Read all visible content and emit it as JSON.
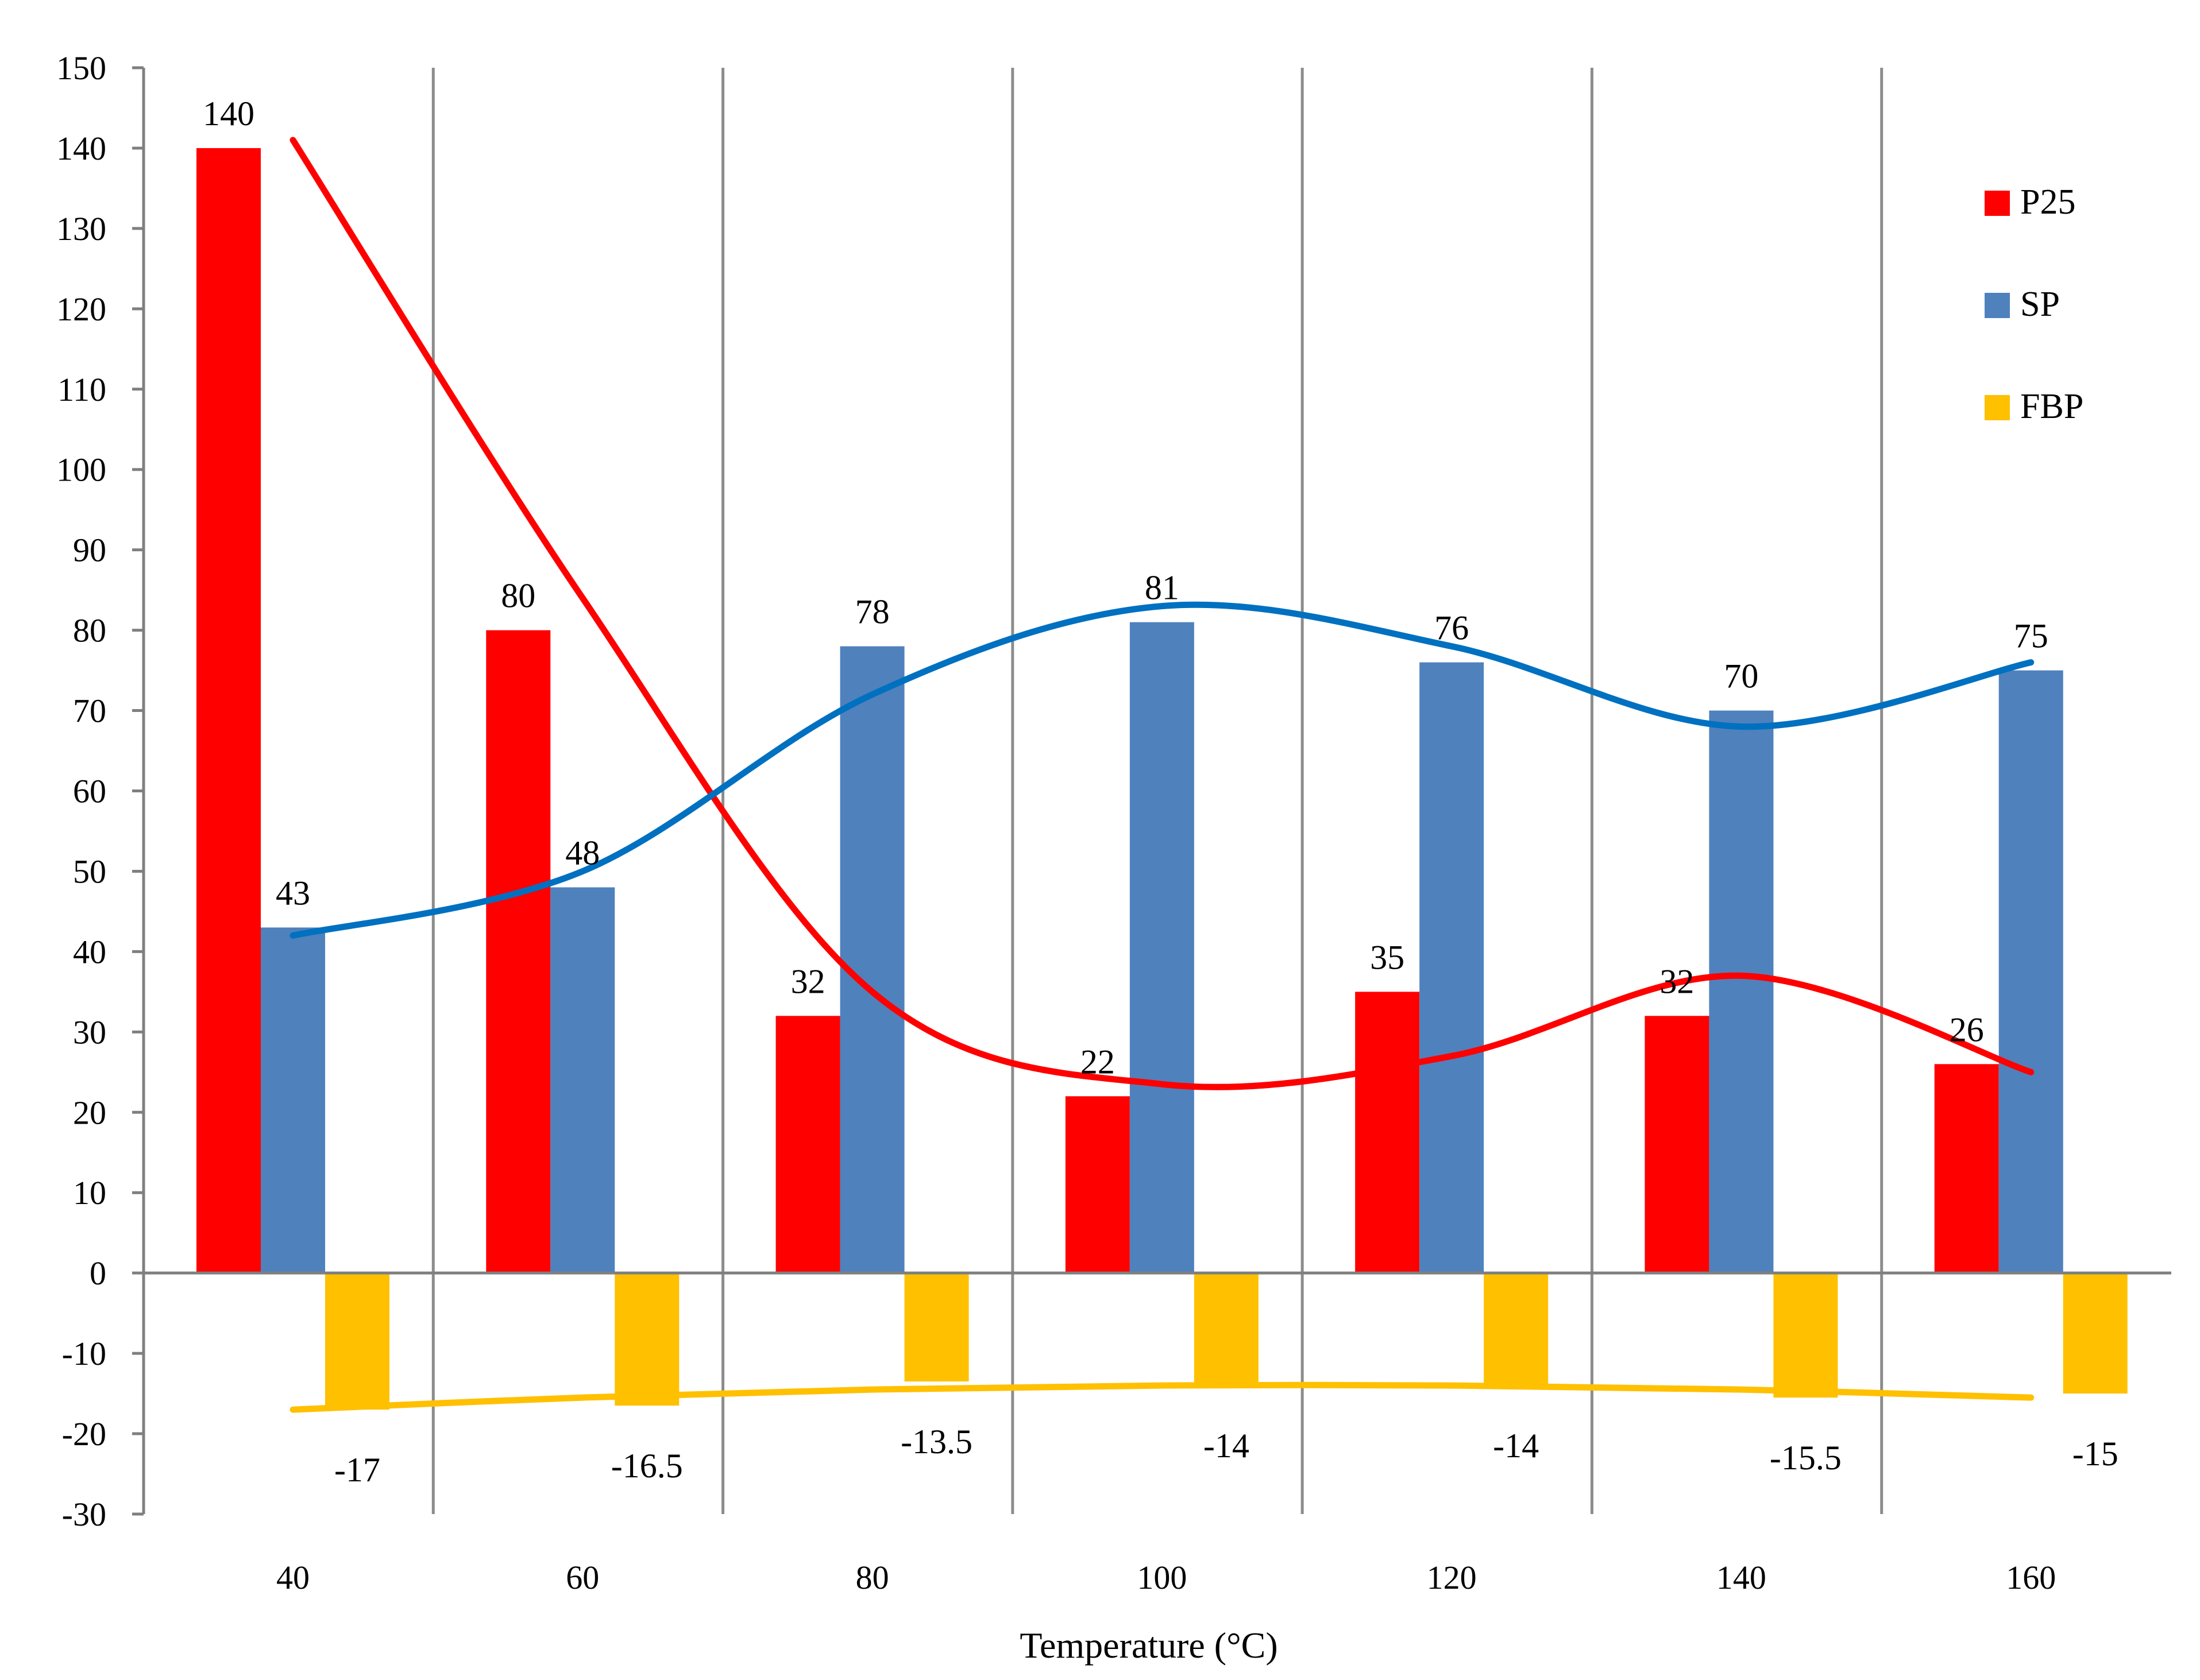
{
  "chart_data": {
    "type": "bar",
    "xlabel": "Temperature (°C)",
    "ylabel": "",
    "ylim": [
      -30,
      150
    ],
    "ytick_step": 10,
    "categories": [
      "40",
      "60",
      "80",
      "100",
      "120",
      "140",
      "160"
    ],
    "series": [
      {
        "name": "P25",
        "color": "#ff0000",
        "values": [
          140,
          80,
          32,
          22,
          35,
          32,
          26
        ],
        "labels": [
          "140",
          "80",
          "32",
          "22",
          "35",
          "32",
          "26"
        ]
      },
      {
        "name": "SP",
        "color": "#4f81bd",
        "values": [
          43,
          48,
          78,
          81,
          76,
          70,
          75
        ],
        "labels": [
          "43",
          "48",
          "78",
          "81",
          "76",
          "70",
          "75"
        ]
      },
      {
        "name": "FBP",
        "color": "#ffc000",
        "values": [
          -17,
          -16.5,
          -13.5,
          -14,
          -14,
          -15.5,
          -15
        ],
        "labels": [
          "-17",
          "-16.5",
          "-13.5",
          "-14",
          "-14",
          "-15.5",
          "-15"
        ]
      }
    ],
    "trendlines": [
      {
        "series": "P25",
        "color": "#ff0000",
        "points": [
          141,
          84,
          35,
          23.5,
          27,
          37,
          25
        ]
      },
      {
        "series": "SP",
        "color": "#0070c0",
        "points": [
          42,
          50,
          72,
          83,
          78,
          68,
          76
        ]
      },
      {
        "series": "FBP",
        "color": "#ffc000",
        "points": [
          -17,
          -15.5,
          -14.5,
          -14,
          -14,
          -14.5,
          -15.5
        ]
      }
    ],
    "legend_position": "top-right",
    "grid": "vertical"
  }
}
